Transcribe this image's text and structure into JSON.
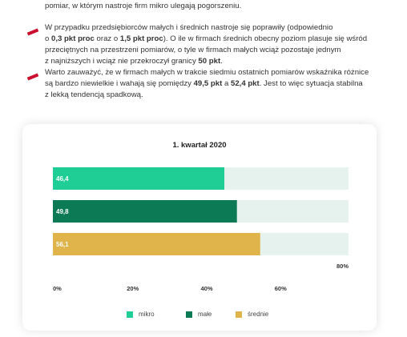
{
  "paragraphs": {
    "p0_line1": "pomiar, w którym nastroje firm mikro ulegają pogorszeniu.",
    "p1_line1_a": "W przypadku przedsiębiorców małych i średnich nastroje się poprawiły (odpowiednio",
    "p1_line2_a": "o ",
    "p1_line2_b": "0,3 pkt proc",
    "p1_line2_c": " oraz o ",
    "p1_line2_d": "1,5 pkt proc",
    "p1_line2_e": "). O ile w firmach średnich obecny poziom plasuje się wśród",
    "p1_line3": "przeciętnych na przestrzeni pomiarów, o tyle w firmach małych wciąż pozostaje jednym",
    "p1_line4_a": "z najniższych i wciąż nie przekroczył granicy ",
    "p1_line4_b": "50 pkt",
    "p1_line4_c": ".",
    "p2_line1": "Warto zauważyć, że w firmach małych w trakcie siedmiu ostatnich pomiarów wskaźnika różnice",
    "p2_line2_a": "są bardzo niewielkie i wahają się pomiędzy ",
    "p2_line2_b": "49,5 pkt",
    "p2_line2_c": " a ",
    "p2_line2_d": "52,4 pkt",
    "p2_line2_e": ". Jest to więc sytuacja stabilna",
    "p2_line3": "z lekką tendencją spadkową."
  },
  "colors": {
    "marker": "#c8102e",
    "track": "#e6f2ee"
  },
  "chart_data": {
    "type": "bar",
    "orientation": "horizontal",
    "title": "1. kwartał 2020",
    "categories": [
      "mikro",
      "małe",
      "średnie"
    ],
    "values": [
      46.4,
      49.8,
      56.1
    ],
    "value_labels": [
      "46,4",
      "49,8",
      "56,1"
    ],
    "colors": [
      "#1fce94",
      "#0b7a55",
      "#e0b44a"
    ],
    "xlim": [
      0,
      80
    ],
    "x_ticks": [
      "0%",
      "20%",
      "40%",
      "60%"
    ],
    "max_label": "80%",
    "legend_position": "bottom",
    "legend": [
      "mikro",
      "małe",
      "średnie"
    ]
  }
}
